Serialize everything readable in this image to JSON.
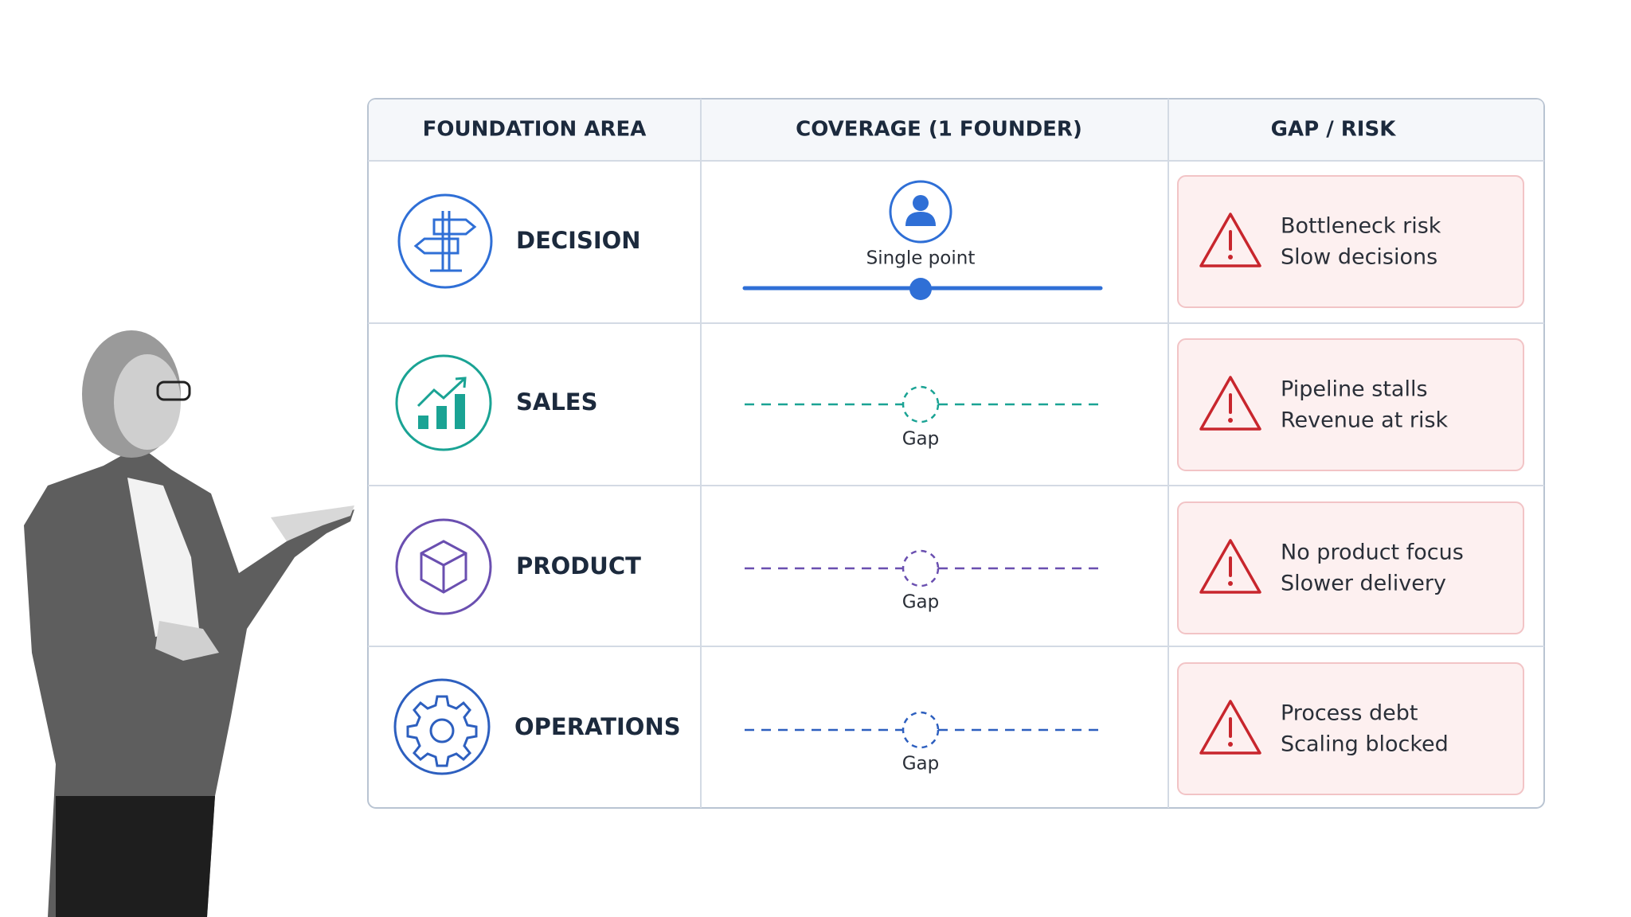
{
  "table": {
    "header": [
      "FOUNDATION AREA",
      "COVERAGE (1 FOUNDER)",
      "GAP / RISK"
    ],
    "rows": [
      {
        "area": "DECISION",
        "coverage": "Single point",
        "risks": [
          "Bottleneck risk",
          "Slow decisions"
        ]
      },
      {
        "area": "SALES",
        "coverage": "Gap",
        "risks": [
          "Pipeline stalls",
          "Revenue at risk"
        ]
      },
      {
        "area": "PRODUCT",
        "coverage": "Gap",
        "risks": [
          "No product focus",
          "Slower delivery"
        ]
      },
      {
        "area": "OPERATIONS",
        "coverage": "Gap",
        "risks": [
          "Process debt",
          "Scaling blocked"
        ]
      }
    ]
  }
}
